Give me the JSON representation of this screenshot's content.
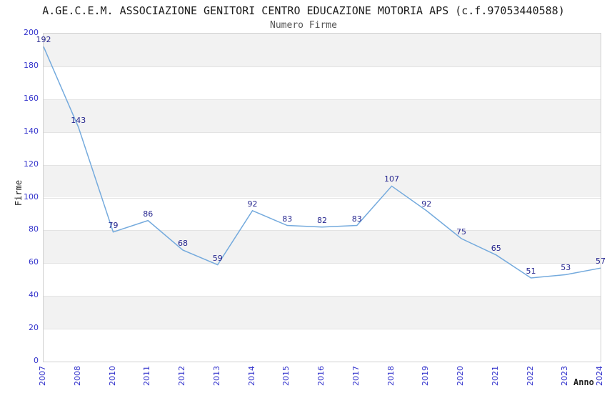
{
  "header": {
    "title": "A.GE.C.E.M. ASSOCIAZIONE GENITORI CENTRO EDUCAZIONE MOTORIA APS (c.f.97053440588)",
    "subtitle": "Numero Firme"
  },
  "chart_data": {
    "type": "line",
    "title": "A.GE.C.E.M. ASSOCIAZIONE GENITORI CENTRO EDUCAZIONE MOTORIA APS (c.f.97053440588)",
    "subtitle": "Numero Firme",
    "xlabel": "Anno",
    "ylabel": "Firme",
    "categories": [
      "2007",
      "2008",
      "2010",
      "2011",
      "2012",
      "2013",
      "2014",
      "2015",
      "2016",
      "2017",
      "2018",
      "2019",
      "2020",
      "2021",
      "2022",
      "2023",
      "2024"
    ],
    "values": [
      192,
      143,
      79,
      86,
      68,
      59,
      92,
      83,
      82,
      83,
      107,
      92,
      75,
      65,
      51,
      53,
      57
    ],
    "ylim": [
      0,
      200
    ],
    "ytick_step": 20,
    "yticks": [
      0,
      20,
      40,
      60,
      80,
      100,
      120,
      140,
      160,
      180,
      200
    ],
    "point_labels_shown": true,
    "legend": "none",
    "grid": "horizontal-bands",
    "colors": {
      "line": "#74aadd",
      "point_label": "#26268f",
      "tick_label": "#3333cc",
      "band_gray": "#f2f2f2",
      "band_white": "#ffffff",
      "gridline": "#e3e3e3",
      "plot_border": "#d0d0d0",
      "title": "#1c1c1c",
      "subtitle": "#555555",
      "axis_title": "#1c1c1c"
    }
  }
}
